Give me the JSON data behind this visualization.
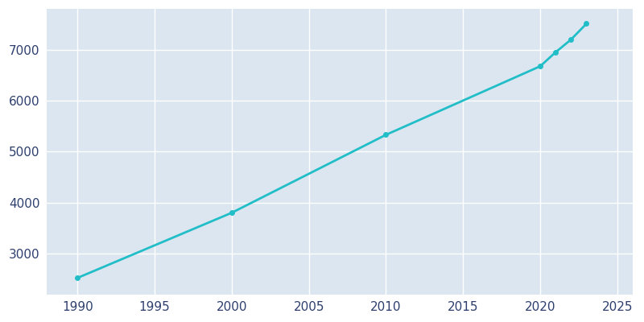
{
  "years": [
    1990,
    2000,
    2010,
    2020,
    2021,
    2022,
    2023
  ],
  "population": [
    2522,
    3800,
    5330,
    6675,
    6950,
    7200,
    7510
  ],
  "line_color": "#22bec8",
  "marker_color": "#22bec8",
  "fig_bg_color": "#ffffff",
  "plot_bg_color": "#dce6f0",
  "grid_color": "#ffffff",
  "tick_color": "#2e3f6e",
  "xlim": [
    1988,
    2026
  ],
  "ylim": [
    2200,
    7800
  ],
  "xticks": [
    1990,
    1995,
    2000,
    2005,
    2010,
    2015,
    2020,
    2025
  ],
  "yticks": [
    3000,
    4000,
    5000,
    6000,
    7000
  ],
  "line_width": 2.0,
  "marker_size": 4
}
